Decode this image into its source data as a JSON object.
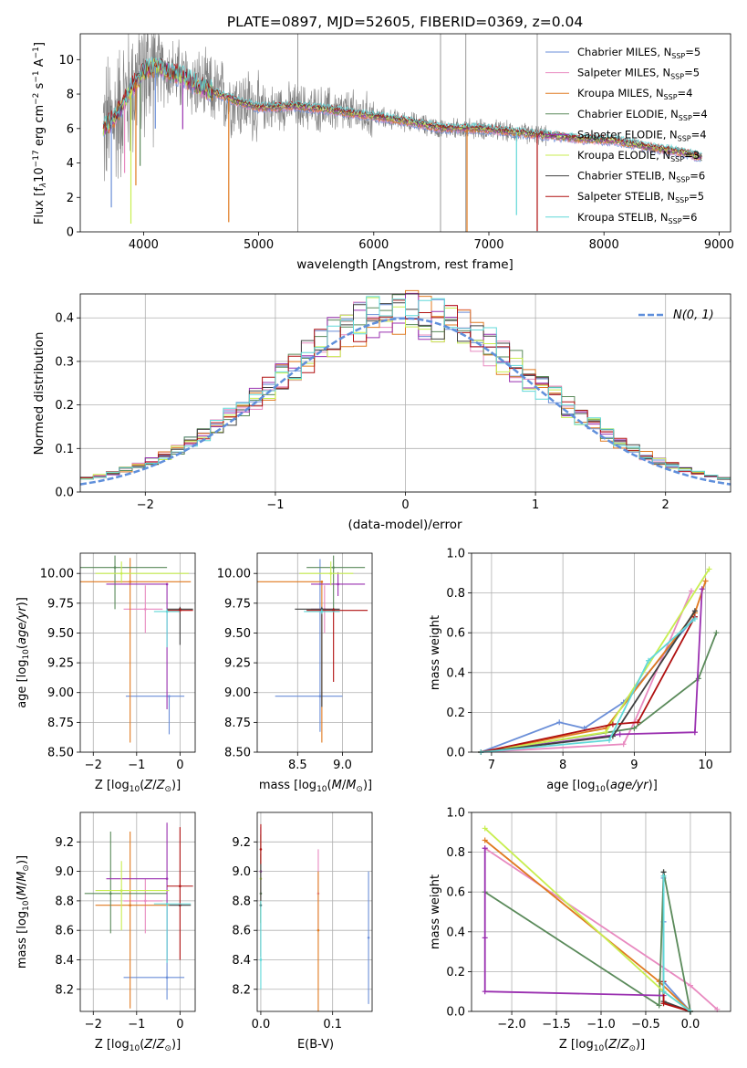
{
  "figure": {
    "title": "PLATE=0897, MJD=52605, FIBERID=0369, z=0.04"
  },
  "colors": {
    "Chabrier MILES": "#6a8ed8",
    "Salpeter MILES": "#e88ac0",
    "Kroupa MILES": "#e07a20",
    "Chabrier ELODIE": "#5a8a5a",
    "Salpeter ELODIE": "#9a30b0",
    "Kroupa ELODIE": "#c8ee50",
    "Chabrier STELIB": "#404040",
    "Salpeter STELIB": "#b01010",
    "Kroupa STELIB": "#60d8d8",
    "data": "#808080",
    "gauss": "#5f8fdb"
  },
  "chart_data": [
    {
      "id": "spectrum",
      "type": "line",
      "title": "PLATE=0897, MJD=52605, FIBERID=0369, z=0.04",
      "xlabel": "wavelength [Angstrom, rest frame]",
      "ylabel": "Flux [f_λ 10^-17 erg cm^-2 s^-1 A^-1]",
      "xlim": [
        3450,
        9100
      ],
      "ylim": [
        0,
        11.5
      ],
      "xticks": [
        4000,
        5000,
        6000,
        7000,
        8000,
        9000
      ],
      "yticks": [
        0,
        2,
        4,
        6,
        8,
        10
      ],
      "grid": false,
      "legend_position": "top-right",
      "legend": [
        "Chabrier MILES, N_SSP=5",
        "Salpeter MILES, N_SSP=5",
        "Kroupa MILES, N_SSP=4",
        "Chabrier ELODIE, N_SSP=4",
        "Salpeter ELODIE, N_SSP=4",
        "Kroupa ELODIE, N_SSP=3",
        "Chabrier STELIB, N_SSP=6",
        "Salpeter STELIB, N_SSP=5",
        "Kroupa STELIB, N_SSP=6"
      ],
      "legend_parts": [
        [
          "Chabrier MILES, N",
          "SSP",
          "=5"
        ],
        [
          "Salpeter MILES, N",
          "SSP",
          "=5"
        ],
        [
          "Kroupa MILES, N",
          "SSP",
          "=4"
        ],
        [
          "Chabrier ELODIE, N",
          "SSP",
          "=4"
        ],
        [
          "Salpeter ELODIE, N",
          "SSP",
          "=4"
        ],
        [
          "Kroupa ELODIE, N",
          "SSP",
          "=3"
        ],
        [
          "Chabrier STELIB, N",
          "SSP",
          "=6"
        ],
        [
          "Salpeter STELIB, N",
          "SSP",
          "=5"
        ],
        [
          "Kroupa STELIB, N",
          "SSP",
          "=6"
        ]
      ],
      "continuum": {
        "x": [
          3650,
          3750,
          3900,
          4000,
          4100,
          4300,
          4500,
          4800,
          5000,
          5300,
          5600,
          6000,
          6300,
          6600,
          6900,
          7200,
          7500,
          7800,
          8100,
          8400,
          8700,
          8850
        ],
        "y": [
          6.0,
          6.6,
          8.4,
          9.3,
          9.6,
          9.1,
          8.4,
          7.6,
          7.2,
          7.3,
          7.1,
          6.7,
          6.4,
          6.0,
          6.0,
          5.8,
          5.6,
          5.4,
          5.3,
          4.9,
          4.6,
          4.3
        ]
      },
      "model_absorption_lines": [
        {
          "x": 3720,
          "model": 0,
          "depth": 5.0
        },
        {
          "x": 3835,
          "model": 1,
          "depth": 4.2
        },
        {
          "x": 3890,
          "model": 5,
          "depth": 7.8
        },
        {
          "x": 3933,
          "model": 2,
          "depth": 6.0
        },
        {
          "x": 3970,
          "model": 3,
          "depth": 5.2
        },
        {
          "x": 4102,
          "model": 0,
          "depth": 3.6
        },
        {
          "x": 4340,
          "model": 4,
          "depth": 3.0
        },
        {
          "x": 4740,
          "model": 2,
          "depth": 7.2
        },
        {
          "x": 6810,
          "model": 2,
          "depth": 6.0
        },
        {
          "x": 7240,
          "model": 8,
          "depth": 4.8
        },
        {
          "x": 7420,
          "model": 7,
          "depth": 5.6
        }
      ],
      "data_lines": [
        5340,
        6580,
        6800,
        7420
      ]
    },
    {
      "id": "residuals",
      "type": "histogram",
      "xlabel": "(data-model)/error",
      "ylabel": "Normed distribution",
      "xlim": [
        -2.5,
        2.5
      ],
      "ylim": [
        0,
        0.455
      ],
      "xticks": [
        -2,
        -1,
        0,
        1,
        2
      ],
      "yticks": [
        0.0,
        0.1,
        0.2,
        0.3,
        0.4
      ],
      "grid": true,
      "legend_position": "top-right",
      "reference_curve": "N(0, 1)",
      "bin_width": 0.1
    },
    {
      "id": "age-vs-Z",
      "type": "scatter",
      "xlabel": "Z [log10(Z/Z⊙)]",
      "ylabel": "age [log10(age/yr)]",
      "xlim": [
        -2.3,
        0.35
      ],
      "ylim": [
        8.5,
        10.17
      ],
      "xticks": [
        -2,
        -1,
        0
      ],
      "yticks": [
        8.5,
        8.75,
        9.0,
        9.25,
        9.5,
        9.75,
        10.0
      ],
      "grid": true,
      "points": [
        {
          "model": 0,
          "x": -0.25,
          "y": 8.97,
          "xerr": [
            1.0,
            0.35
          ],
          "yerr": [
            0.32,
            0.0
          ]
        },
        {
          "model": 1,
          "x": -0.8,
          "y": 9.7,
          "xerr": [
            0.5,
            0.4
          ],
          "yerr": [
            0.2,
            0.2
          ]
        },
        {
          "model": 2,
          "x": -1.15,
          "y": 9.93,
          "xerr": [
            1.3,
            1.4
          ],
          "yerr": [
            1.35,
            0.2
          ]
        },
        {
          "model": 3,
          "x": -1.5,
          "y": 10.05,
          "xerr": [
            0.8,
            1.2
          ],
          "yerr": [
            0.35,
            0.1
          ]
        },
        {
          "model": 4,
          "x": -0.3,
          "y": 9.91,
          "xerr": [
            1.4,
            0.0
          ],
          "yerr": [
            1.05,
            0.0
          ]
        },
        {
          "model": 5,
          "x": -1.35,
          "y": 10.0,
          "xerr": [
            0.6,
            1.55
          ],
          "yerr": [
            0.08,
            0.1
          ]
        },
        {
          "model": 6,
          "x": 0.0,
          "y": 9.7,
          "xerr": [
            0.3,
            0.3
          ],
          "yerr": [
            0.3,
            0.02
          ]
        },
        {
          "model": 7,
          "x": 0.0,
          "y": 9.69,
          "xerr": [
            0.3,
            0.3
          ],
          "yerr": [
            0.02,
            0.02
          ]
        },
        {
          "model": 8,
          "x": -0.3,
          "y": 9.68,
          "xerr": [
            0.3,
            0.3
          ],
          "yerr": [
            0.3,
            0.02
          ]
        }
      ]
    },
    {
      "id": "age-vs-mass",
      "type": "scatter",
      "xlabel": "mass [log10(M/M⊙)]",
      "ylabel": "",
      "xlim": [
        8.05,
        9.33
      ],
      "ylim": [
        8.5,
        10.17
      ],
      "xticks": [
        8.5,
        9.0
      ],
      "yticks": [
        8.5,
        8.75,
        9.0,
        9.25,
        9.5,
        9.75,
        10.0
      ],
      "grid": true,
      "points": [
        {
          "model": 0,
          "x": 8.75,
          "y": 8.97,
          "xerr": [
            0.5,
            0.25
          ],
          "yerr": [
            0.3,
            1.15
          ]
        },
        {
          "model": 1,
          "x": 8.8,
          "y": 9.7,
          "xerr": [
            0.15,
            0.1
          ],
          "yerr": [
            0.2,
            0.2
          ]
        },
        {
          "model": 2,
          "x": 8.77,
          "y": 9.93,
          "xerr": [
            0.72,
            0.0
          ],
          "yerr": [
            1.35,
            0.0
          ]
        },
        {
          "model": 3,
          "x": 8.9,
          "y": 10.05,
          "xerr": [
            0.3,
            0.35
          ],
          "yerr": [
            0.35,
            0.1
          ]
        },
        {
          "model": 4,
          "x": 8.95,
          "y": 9.91,
          "xerr": [
            0.3,
            0.3
          ],
          "yerr": [
            0.1,
            0.1
          ]
        },
        {
          "model": 5,
          "x": 8.87,
          "y": 10.0,
          "xerr": [
            0.35,
            0.25
          ],
          "yerr": [
            0.1,
            0.1
          ]
        },
        {
          "model": 6,
          "x": 8.77,
          "y": 9.7,
          "xerr": [
            0.3,
            0.2
          ],
          "yerr": [
            0.82,
            0.02
          ]
        },
        {
          "model": 7,
          "x": 8.9,
          "y": 9.69,
          "xerr": [
            0.3,
            0.38
          ],
          "yerr": [
            0.6,
            0.02
          ]
        },
        {
          "model": 8,
          "x": 8.77,
          "y": 9.68,
          "xerr": [
            0.2,
            0.2
          ],
          "yerr": [
            0.02,
            0.02
          ]
        }
      ]
    },
    {
      "id": "mass-weight-vs-age",
      "type": "line",
      "xlabel": "age [log10(age/yr)]",
      "ylabel": "mass weight",
      "xlim": [
        6.72,
        10.35
      ],
      "ylim": [
        0,
        1.0
      ],
      "xticks": [
        7,
        8,
        9,
        10
      ],
      "yticks": [
        0.0,
        0.2,
        0.4,
        0.6,
        0.8,
        1.0
      ],
      "grid": true,
      "series": [
        {
          "model": 0,
          "x": [
            6.85,
            7.95,
            8.3,
            8.85,
            9.85
          ],
          "y": [
            0.0,
            0.15,
            0.12,
            0.25,
            0.68
          ]
        },
        {
          "model": 1,
          "x": [
            6.85,
            8.85,
            9.0,
            9.8
          ],
          "y": [
            0.0,
            0.04,
            0.15,
            0.81
          ]
        },
        {
          "model": 2,
          "x": [
            6.85,
            8.6,
            9.85,
            10.0
          ],
          "y": [
            0.0,
            0.12,
            0.7,
            0.86
          ]
        },
        {
          "model": 3,
          "x": [
            6.85,
            9.0,
            9.9,
            10.15
          ],
          "y": [
            0.0,
            0.12,
            0.37,
            0.6
          ]
        },
        {
          "model": 4,
          "x": [
            6.85,
            8.8,
            9.85,
            9.95,
            9.85
          ],
          "y": [
            0.0,
            0.09,
            0.1,
            0.82,
            0.1
          ]
        },
        {
          "model": 5,
          "x": [
            6.85,
            8.6,
            10.05
          ],
          "y": [
            0.0,
            0.1,
            0.92
          ]
        },
        {
          "model": 6,
          "x": [
            6.85,
            8.7,
            9.85
          ],
          "y": [
            0.0,
            0.08,
            0.71
          ]
        },
        {
          "model": 7,
          "x": [
            6.85,
            8.7,
            9.05,
            9.85
          ],
          "y": [
            0.0,
            0.14,
            0.15,
            0.68
          ]
        },
        {
          "model": 8,
          "x": [
            6.85,
            8.65,
            9.2,
            9.85
          ],
          "y": [
            0.0,
            0.06,
            0.46,
            0.67
          ]
        }
      ]
    },
    {
      "id": "mass-vs-Z",
      "type": "scatter",
      "xlabel": "Z [log10(Z/Z⊙)]",
      "ylabel": "mass [log10(M/M⊙)]",
      "xlim": [
        -2.3,
        0.35
      ],
      "ylim": [
        8.05,
        9.4
      ],
      "xticks": [
        -2,
        -1,
        0
      ],
      "yticks": [
        8.2,
        8.4,
        8.6,
        8.8,
        9.0,
        9.2
      ],
      "grid": true,
      "points": [
        {
          "model": 0,
          "x": -0.3,
          "y": 8.28,
          "xerr": [
            1.0,
            0.4
          ],
          "yerr": [
            0.15,
            0.48
          ]
        },
        {
          "model": 1,
          "x": -0.8,
          "y": 8.8,
          "xerr": [
            0.5,
            0.4
          ],
          "yerr": [
            0.22,
            0.15
          ]
        },
        {
          "model": 2,
          "x": -1.15,
          "y": 8.77,
          "xerr": [
            0.8,
            0.9
          ],
          "yerr": [
            0.7,
            0.5
          ]
        },
        {
          "model": 3,
          "x": -1.6,
          "y": 8.85,
          "xerr": [
            0.6,
            1.3
          ],
          "yerr": [
            0.27,
            0.42
          ]
        },
        {
          "model": 4,
          "x": -0.3,
          "y": 8.95,
          "xerr": [
            1.4,
            0.0
          ],
          "yerr": [
            0.55,
            0.38
          ]
        },
        {
          "model": 5,
          "x": -1.35,
          "y": 8.87,
          "xerr": [
            0.6,
            1.1
          ],
          "yerr": [
            0.27,
            0.2
          ]
        },
        {
          "model": 6,
          "x": 0.0,
          "y": 8.77,
          "xerr": [
            0.25,
            0.25
          ],
          "yerr": [
            0.0,
            0.0
          ]
        },
        {
          "model": 7,
          "x": 0.0,
          "y": 8.9,
          "xerr": [
            0.3,
            0.3
          ],
          "yerr": [
            0.5,
            0.4
          ]
        },
        {
          "model": 8,
          "x": -0.3,
          "y": 8.78,
          "xerr": [
            0.3,
            0.55
          ],
          "yerr": [
            0.4,
            0.0
          ]
        }
      ]
    },
    {
      "id": "mass-vs-EBV",
      "type": "scatter",
      "xlabel": "E(B-V)",
      "ylabel": "",
      "xlim": [
        -0.005,
        0.155
      ],
      "ylim": [
        8.05,
        9.4
      ],
      "xticks": [
        0.0,
        0.1
      ],
      "yticks": [
        8.2,
        8.4,
        8.6,
        8.8,
        9.0,
        9.2
      ],
      "grid": true,
      "points": [
        {
          "model": 0,
          "x": 0.15,
          "y": 8.55,
          "yerr": [
            0.45,
            0.45
          ]
        },
        {
          "model": 1,
          "x": 0.08,
          "y": 8.85,
          "yerr": [
            0.25,
            0.3
          ]
        },
        {
          "model": 2,
          "x": 0.08,
          "y": 8.6,
          "yerr": [
            0.55,
            0.4
          ]
        },
        {
          "model": 3,
          "x": 0.0,
          "y": 8.85,
          "yerr": [
            0.2,
            0.4
          ]
        },
        {
          "model": 4,
          "x": 0.0,
          "y": 9.0,
          "yerr": [
            0.25,
            0.3
          ]
        },
        {
          "model": 5,
          "x": 0.0,
          "y": 8.95,
          "yerr": [
            0.3,
            0.3
          ]
        },
        {
          "model": 6,
          "x": 0.0,
          "y": 8.77,
          "yerr": [
            0.35,
            0.35
          ]
        },
        {
          "model": 7,
          "x": 0.0,
          "y": 9.15,
          "yerr": [
            0.1,
            0.17
          ]
        },
        {
          "model": 8,
          "x": 0.0,
          "y": 8.4,
          "yerr": [
            0.2,
            0.4
          ]
        }
      ]
    },
    {
      "id": "mass-weight-vs-Z",
      "type": "line",
      "xlabel": "Z [log10(Z/Z⊙)]",
      "ylabel": "mass weight",
      "xlim": [
        -2.45,
        0.45
      ],
      "ylim": [
        0,
        1.0
      ],
      "xticks": [
        -2.0,
        -1.5,
        -1.0,
        -0.5,
        0.0
      ],
      "yticks": [
        0.0,
        0.2,
        0.4,
        0.6,
        0.8,
        1.0
      ],
      "grid": true,
      "series": [
        {
          "model": 0,
          "x": [
            -0.3,
            -0.3,
            -0.3,
            0.0
          ],
          "y": [
            0.67,
            0.45,
            0.15,
            0.0
          ]
        },
        {
          "model": 1,
          "x": [
            -2.3,
            0.0,
            0.3
          ],
          "y": [
            0.82,
            0.13,
            0.01
          ]
        },
        {
          "model": 2,
          "x": [
            -2.3,
            -0.35,
            0.0
          ],
          "y": [
            0.86,
            0.15,
            0.0
          ]
        },
        {
          "model": 3,
          "x": [
            -2.3,
            -0.35,
            -0.3,
            0.0
          ],
          "y": [
            0.6,
            0.03,
            0.7,
            0.0
          ]
        },
        {
          "model": 4,
          "x": [
            -2.3,
            -2.3,
            -2.3,
            -0.3
          ],
          "y": [
            0.82,
            0.37,
            0.1,
            0.08
          ]
        },
        {
          "model": 5,
          "x": [
            -2.3,
            -0.3,
            0.0
          ],
          "y": [
            0.92,
            0.1,
            0.0
          ]
        },
        {
          "model": 6,
          "x": [
            -0.3,
            -0.3,
            0.0
          ],
          "y": [
            0.7,
            0.05,
            0.0
          ]
        },
        {
          "model": 7,
          "x": [
            -0.3,
            -0.3,
            0.0
          ],
          "y": [
            0.15,
            0.04,
            0.0
          ]
        },
        {
          "model": 8,
          "x": [
            -0.3,
            -0.3,
            0.0
          ],
          "y": [
            0.68,
            0.1,
            0.0
          ]
        }
      ]
    }
  ]
}
